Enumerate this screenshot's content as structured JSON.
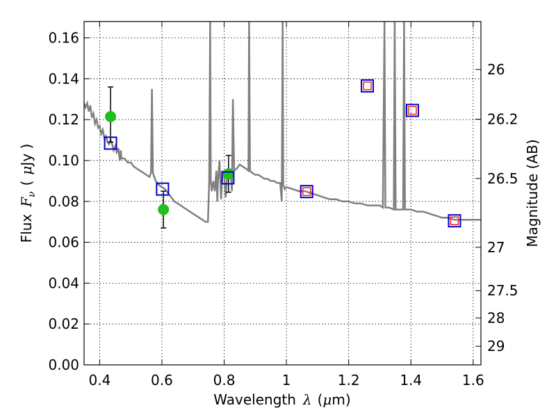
{
  "chart_data": {
    "type": "scatter",
    "xlabel": "Wavelength  λ (μm)",
    "ylabel": "Flux  Fν  ( μJy )",
    "ylabel_parts": {
      "pre": "Flux",
      "sym": "F",
      "sub": "ν",
      "open": "(",
      "mu": "μ",
      "unit": "Jy )"
    },
    "xlabel_parts": {
      "pre": "Wavelength",
      "sym": "λ",
      "post": "(",
      "mu": "μ",
      "unit": "m)"
    },
    "y2label": "Magnitude (AB)",
    "xlim": [
      0.35,
      1.625
    ],
    "ylim": [
      0,
      0.168
    ],
    "grid": true,
    "x_ticks": [
      {
        "value": 0.4,
        "label": "0.4"
      },
      {
        "value": 0.6,
        "label": "0.6"
      },
      {
        "value": 0.8,
        "label": "0.8"
      },
      {
        "value": 1.0,
        "label": "1"
      },
      {
        "value": 1.2,
        "label": "1.2"
      },
      {
        "value": 1.4,
        "label": "1.4"
      },
      {
        "value": 1.6,
        "label": "1.6"
      }
    ],
    "y_ticks": [
      {
        "value": 0.0,
        "label": "0.00"
      },
      {
        "value": 0.02,
        "label": "0.02"
      },
      {
        "value": 0.04,
        "label": "0.04"
      },
      {
        "value": 0.06,
        "label": "0.06"
      },
      {
        "value": 0.08,
        "label": "0.08"
      },
      {
        "value": 0.1,
        "label": "0.10"
      },
      {
        "value": 0.12,
        "label": "0.12"
      },
      {
        "value": 0.14,
        "label": "0.14"
      },
      {
        "value": 0.16,
        "label": "0.16"
      }
    ],
    "mag_ticks": [
      {
        "value": 26,
        "label": "26"
      },
      {
        "value": 26.2,
        "label": "26.2"
      },
      {
        "value": 26.5,
        "label": "26.5"
      },
      {
        "value": 27,
        "label": "27"
      },
      {
        "value": 27.5,
        "label": "27.5"
      },
      {
        "value": 28,
        "label": "28"
      },
      {
        "value": 29,
        "label": "29"
      }
    ],
    "sed_model": {
      "color": "#808080",
      "points": [
        [
          0.35,
          0.128
        ],
        [
          0.355,
          0.126
        ],
        [
          0.36,
          0.128
        ],
        [
          0.365,
          0.124
        ],
        [
          0.37,
          0.127
        ],
        [
          0.375,
          0.121
        ],
        [
          0.38,
          0.123
        ],
        [
          0.385,
          0.118
        ],
        [
          0.39,
          0.12
        ],
        [
          0.395,
          0.116
        ],
        [
          0.4,
          0.117
        ],
        [
          0.405,
          0.113
        ],
        [
          0.41,
          0.115
        ],
        [
          0.415,
          0.111
        ],
        [
          0.42,
          0.112
        ],
        [
          0.425,
          0.109
        ],
        [
          0.43,
          0.108
        ],
        [
          0.435,
          0.11
        ],
        [
          0.44,
          0.108
        ],
        [
          0.445,
          0.105
        ],
        [
          0.45,
          0.107
        ],
        [
          0.455,
          0.104
        ],
        [
          0.46,
          0.106
        ],
        [
          0.465,
          0.1
        ],
        [
          0.468,
          0.105
        ],
        [
          0.47,
          0.101
        ],
        [
          0.48,
          0.101
        ],
        [
          0.49,
          0.099
        ],
        [
          0.5,
          0.099
        ],
        [
          0.51,
          0.097
        ],
        [
          0.52,
          0.096
        ],
        [
          0.53,
          0.095
        ],
        [
          0.54,
          0.094
        ],
        [
          0.55,
          0.093
        ],
        [
          0.56,
          0.092
        ],
        [
          0.565,
          0.094
        ],
        [
          0.568,
          0.135
        ],
        [
          0.571,
          0.094
        ],
        [
          0.58,
          0.09
        ],
        [
          0.59,
          0.088
        ],
        [
          0.6,
          0.087
        ],
        [
          0.61,
          0.086
        ],
        [
          0.62,
          0.084
        ],
        [
          0.63,
          0.082
        ],
        [
          0.64,
          0.08
        ],
        [
          0.65,
          0.079
        ],
        [
          0.66,
          0.078
        ],
        [
          0.67,
          0.077
        ],
        [
          0.68,
          0.076
        ],
        [
          0.69,
          0.075
        ],
        [
          0.7,
          0.074
        ],
        [
          0.71,
          0.073
        ],
        [
          0.72,
          0.072
        ],
        [
          0.73,
          0.071
        ],
        [
          0.74,
          0.07
        ],
        [
          0.748,
          0.07
        ],
        [
          0.752,
          0.09
        ],
        [
          0.755,
          0.168
        ],
        [
          0.757,
          0.09
        ],
        [
          0.76,
          0.085
        ],
        [
          0.765,
          0.09
        ],
        [
          0.77,
          0.085
        ],
        [
          0.775,
          0.095
        ],
        [
          0.778,
          0.08
        ],
        [
          0.78,
          0.09
        ],
        [
          0.785,
          0.1
        ],
        [
          0.79,
          0.081
        ],
        [
          0.795,
          0.095
        ],
        [
          0.8,
          0.093
        ],
        [
          0.805,
          0.082
        ],
        [
          0.81,
          0.094
        ],
        [
          0.815,
          0.092
        ],
        [
          0.82,
          0.096
        ],
        [
          0.825,
          0.085
        ],
        [
          0.828,
          0.13
        ],
        [
          0.832,
          0.095
        ],
        [
          0.84,
          0.096
        ],
        [
          0.85,
          0.098
        ],
        [
          0.86,
          0.097
        ],
        [
          0.87,
          0.096
        ],
        [
          0.878,
          0.095
        ],
        [
          0.88,
          0.168
        ],
        [
          0.883,
          0.095
        ],
        [
          0.89,
          0.094
        ],
        [
          0.9,
          0.093
        ],
        [
          0.91,
          0.093
        ],
        [
          0.92,
          0.092
        ],
        [
          0.93,
          0.091
        ],
        [
          0.94,
          0.091
        ],
        [
          0.95,
          0.09
        ],
        [
          0.96,
          0.09
        ],
        [
          0.97,
          0.089
        ],
        [
          0.98,
          0.089
        ],
        [
          0.985,
          0.08
        ],
        [
          0.988,
          0.168
        ],
        [
          0.99,
          0.088
        ],
        [
          0.995,
          0.086
        ],
        [
          1.0,
          0.087
        ],
        [
          1.02,
          0.086
        ],
        [
          1.04,
          0.085
        ],
        [
          1.06,
          0.085
        ],
        [
          1.08,
          0.084
        ],
        [
          1.1,
          0.083
        ],
        [
          1.12,
          0.082
        ],
        [
          1.14,
          0.081
        ],
        [
          1.16,
          0.081
        ],
        [
          1.18,
          0.08
        ],
        [
          1.2,
          0.08
        ],
        [
          1.22,
          0.079
        ],
        [
          1.24,
          0.079
        ],
        [
          1.26,
          0.078
        ],
        [
          1.28,
          0.078
        ],
        [
          1.3,
          0.078
        ],
        [
          1.31,
          0.077
        ],
        [
          1.315,
          0.168
        ],
        [
          1.318,
          0.077
        ],
        [
          1.33,
          0.077
        ],
        [
          1.345,
          0.076
        ],
        [
          1.348,
          0.168
        ],
        [
          1.351,
          0.076
        ],
        [
          1.36,
          0.076
        ],
        [
          1.375,
          0.076
        ],
        [
          1.378,
          0.168
        ],
        [
          1.381,
          0.076
        ],
        [
          1.4,
          0.076
        ],
        [
          1.42,
          0.075
        ],
        [
          1.44,
          0.075
        ],
        [
          1.46,
          0.074
        ],
        [
          1.48,
          0.073
        ],
        [
          1.5,
          0.072
        ],
        [
          1.52,
          0.072
        ],
        [
          1.54,
          0.071
        ],
        [
          1.56,
          0.071
        ],
        [
          1.58,
          0.071
        ],
        [
          1.6,
          0.071
        ],
        [
          1.625,
          0.071
        ]
      ]
    },
    "observed": {
      "color": "#1fbf1f",
      "points": [
        {
          "x": 0.435,
          "y": 0.1215,
          "yerr_low": 0.109,
          "yerr_high": 0.136
        },
        {
          "x": 0.605,
          "y": 0.076,
          "yerr_low": 0.067,
          "yerr_high": 0.085
        },
        {
          "x": 0.814,
          "y": 0.0935,
          "yerr_low": 0.0845,
          "yerr_high": 0.1025
        }
      ]
    },
    "model_fluxes": {
      "color": "#0000cc",
      "points": [
        {
          "x": 0.435,
          "y": 0.1085
        },
        {
          "x": 0.602,
          "y": 0.086
        },
        {
          "x": 0.812,
          "y": 0.0915
        },
        {
          "x": 1.065,
          "y": 0.0848
        },
        {
          "x": 1.26,
          "y": 0.1365
        },
        {
          "x": 1.405,
          "y": 0.1245
        },
        {
          "x": 1.54,
          "y": 0.0705
        }
      ]
    },
    "ir_upper": {
      "color": "#ee2222",
      "points": [
        {
          "x": 1.065,
          "y": 0.0848
        },
        {
          "x": 1.26,
          "y": 0.1365
        },
        {
          "x": 1.405,
          "y": 0.1245
        },
        {
          "x": 1.54,
          "y": 0.0705
        }
      ]
    }
  }
}
